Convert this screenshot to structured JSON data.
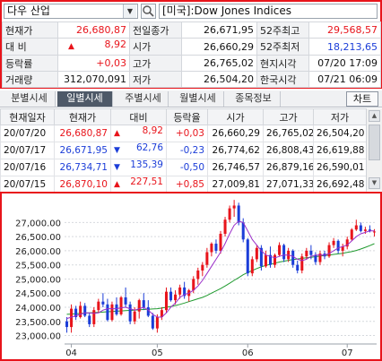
{
  "search": {
    "value": "다우 산업"
  },
  "market": {
    "value": "[미국]:Dow Jones Indices"
  },
  "quote": {
    "rows": [
      [
        {
          "label": "현재가",
          "value": "26,680,87",
          "color": "red",
          "arrow": ""
        },
        {
          "label": "전일종가",
          "value": "26,671,95",
          "color": "",
          "arrow": ""
        },
        {
          "label": "52주최고",
          "value": "29,568,57",
          "color": "red",
          "arrow": ""
        }
      ],
      [
        {
          "label": "대  비",
          "value": "8,92",
          "color": "red",
          "arrow": "▲"
        },
        {
          "label": "시가",
          "value": "26,660,29",
          "color": "",
          "arrow": ""
        },
        {
          "label": "52주최저",
          "value": "18,213,65",
          "color": "blue",
          "arrow": ""
        }
      ],
      [
        {
          "label": "등락률",
          "value": "+0,03",
          "color": "red",
          "arrow": ""
        },
        {
          "label": "고가",
          "value": "26,765,02",
          "color": "",
          "arrow": ""
        },
        {
          "label": "현지시각",
          "value": "07/20 17:09",
          "color": "",
          "arrow": ""
        }
      ],
      [
        {
          "label": "거래량",
          "value": "312,070,091",
          "color": "",
          "arrow": ""
        },
        {
          "label": "저가",
          "value": "26,504,20",
          "color": "",
          "arrow": ""
        },
        {
          "label": "한국시각",
          "value": "07/21 06:09",
          "color": "",
          "arrow": ""
        }
      ]
    ]
  },
  "tabs": [
    "분별시세",
    "일별시세",
    "주별시세",
    "월별시세",
    "종목정보"
  ],
  "active_tab": 1,
  "chart_button": "차트",
  "daily": {
    "headers": [
      "현재일자",
      "현재가",
      "대비",
      "등락율",
      "시가",
      "고가",
      "저가"
    ],
    "rows": [
      {
        "date": "20/07/20",
        "close": "26,680,87",
        "arrow": "▲",
        "change": "8,92",
        "rate": "+0,03",
        "open": "26,660,29",
        "high": "26,765,02",
        "low": "26,504,20",
        "color": "red"
      },
      {
        "date": "20/07/17",
        "close": "26,671,95",
        "arrow": "▼",
        "change": "62,76",
        "rate": "-0,23",
        "open": "26,774,62",
        "high": "26,808,43",
        "low": "26,619,88",
        "color": "blue"
      },
      {
        "date": "20/07/16",
        "close": "26,734,71",
        "arrow": "▼",
        "change": "135,39",
        "rate": "-0,50",
        "open": "26,746,57",
        "high": "26,879,16",
        "low": "26,590,01",
        "color": "blue"
      },
      {
        "date": "20/07/15",
        "close": "26,870,10",
        "arrow": "▲",
        "change": "227,51",
        "rate": "+0,85",
        "open": "27,009,81",
        "high": "27,071,33",
        "low": "26,692,48",
        "color": "red"
      }
    ]
  },
  "chart_data": {
    "type": "candlestick",
    "ylim": [
      22700,
      27900
    ],
    "yticks": [
      "27,000.00",
      "26,500.00",
      "26,000.00",
      "25,500.00",
      "25,000.00",
      "24,500.00",
      "24,000.00",
      "23,500.00",
      "23,000.00"
    ],
    "ytick_values": [
      27000,
      26500,
      26000,
      25500,
      25000,
      24500,
      24000,
      23500,
      23000
    ],
    "xticks": [
      {
        "label": "04",
        "index": 1
      },
      {
        "label": "05",
        "index": 20
      },
      {
        "label": "06",
        "index": 40
      },
      {
        "label": "07",
        "index": 62
      }
    ],
    "up_color": "#e8141b",
    "down_color": "#1b3dd8",
    "ma_short_color": "#9b2fc9",
    "ma_long_color": "#1f9a2e",
    "candles": [
      [
        23500,
        23650,
        23100,
        23300
      ],
      [
        23300,
        24100,
        23100,
        23950
      ],
      [
        23950,
        24050,
        23550,
        23650
      ],
      [
        23650,
        24200,
        23600,
        24050
      ],
      [
        24050,
        24150,
        23650,
        23700
      ],
      [
        23700,
        23800,
        23300,
        23400
      ],
      [
        23400,
        24000,
        23300,
        23900
      ],
      [
        23900,
        24300,
        23800,
        24200
      ],
      [
        24200,
        24500,
        24000,
        24100
      ],
      [
        24100,
        24300,
        23500,
        23550
      ],
      [
        23550,
        24200,
        23500,
        24100
      ],
      [
        24100,
        24350,
        23700,
        23750
      ],
      [
        23750,
        24400,
        23700,
        24350
      ],
      [
        24350,
        24700,
        24000,
        24100
      ],
      [
        24100,
        24200,
        23400,
        23500
      ],
      [
        23500,
        24000,
        23400,
        23850
      ],
      [
        23850,
        24300,
        23600,
        24250
      ],
      [
        24250,
        24500,
        23900,
        24000
      ],
      [
        24000,
        24250,
        23650,
        23700
      ],
      [
        23700,
        23800,
        23200,
        23250
      ],
      [
        23250,
        23750,
        23100,
        23650
      ],
      [
        23650,
        24000,
        23550,
        23900
      ],
      [
        23900,
        24700,
        23800,
        24550
      ],
      [
        24550,
        24700,
        24200,
        24250
      ],
      [
        24250,
        24600,
        24100,
        24450
      ],
      [
        24450,
        24800,
        24300,
        24700
      ],
      [
        24700,
        24900,
        24300,
        24400
      ],
      [
        24400,
        24650,
        24200,
        24600
      ],
      [
        24600,
        25100,
        24500,
        25000
      ],
      [
        25000,
        25400,
        24800,
        25300
      ],
      [
        25300,
        25600,
        25100,
        25500
      ],
      [
        25500,
        26100,
        25400,
        25950
      ],
      [
        25950,
        26300,
        25800,
        26250
      ],
      [
        26250,
        26400,
        25900,
        26000
      ],
      [
        26000,
        26700,
        25900,
        26600
      ],
      [
        26600,
        27200,
        26500,
        27100
      ],
      [
        27100,
        27600,
        27000,
        27500
      ],
      [
        27500,
        27800,
        27200,
        27600
      ],
      [
        27600,
        27700,
        26900,
        27000
      ],
      [
        27000,
        27150,
        26300,
        26400
      ],
      [
        26400,
        26450,
        25100,
        25200
      ],
      [
        25200,
        25800,
        25100,
        25700
      ],
      [
        25700,
        26200,
        25600,
        26100
      ],
      [
        26100,
        26200,
        25300,
        25450
      ],
      [
        25450,
        26000,
        25400,
        25850
      ],
      [
        25850,
        26150,
        25400,
        25500
      ],
      [
        25500,
        25900,
        25400,
        25850
      ],
      [
        25850,
        26300,
        25800,
        26200
      ],
      [
        26200,
        26250,
        25600,
        25700
      ],
      [
        25700,
        26100,
        25600,
        26000
      ],
      [
        26000,
        26050,
        25400,
        25500
      ],
      [
        25500,
        25650,
        25200,
        25300
      ],
      [
        25300,
        25900,
        25200,
        25800
      ],
      [
        25800,
        26100,
        25700,
        26000
      ],
      [
        26000,
        26200,
        25700,
        25850
      ],
      [
        25850,
        25950,
        25500,
        25600
      ],
      [
        25600,
        26000,
        25500,
        25900
      ],
      [
        25900,
        26000,
        25700,
        25800
      ],
      [
        25800,
        26300,
        25750,
        26200
      ],
      [
        26200,
        26450,
        26100,
        26350
      ],
      [
        26350,
        26400,
        25900,
        26000
      ],
      [
        26000,
        26250,
        25800,
        26150
      ],
      [
        26150,
        26500,
        26050,
        26400
      ],
      [
        26400,
        26800,
        26350,
        26750
      ],
      [
        26750,
        27100,
        26700,
        26900
      ],
      [
        26900,
        27000,
        26650,
        26700
      ],
      [
        26700,
        26850,
        26600,
        26750
      ],
      [
        26750,
        26900,
        26650,
        26700
      ],
      [
        26660,
        26765,
        26504,
        26681
      ]
    ],
    "ma_short": [
      23600,
      23650,
      23700,
      23750,
      23800,
      23800,
      23780,
      23800,
      23900,
      23950,
      23950,
      23950,
      23980,
      24000,
      23950,
      23900,
      23950,
      24000,
      23900,
      23750,
      23650,
      23650,
      23800,
      24000,
      24150,
      24350,
      24450,
      24500,
      24600,
      24750,
      24950,
      25200,
      25450,
      25700,
      25950,
      26250,
      26600,
      26900,
      27050,
      27000,
      26700,
      26400,
      26200,
      26000,
      25850,
      25800,
      25750,
      25800,
      25850,
      25850,
      25800,
      25700,
      25650,
      25700,
      25800,
      25850,
      25850,
      25850,
      25900,
      26000,
      26100,
      26150,
      26200,
      26350,
      26500,
      26600,
      26650,
      26700,
      26700
    ],
    "ma_long": [
      23750,
      23760,
      23770,
      23780,
      23790,
      23800,
      23810,
      23820,
      23830,
      23840,
      23850,
      23860,
      23870,
      23880,
      23890,
      23900,
      23910,
      23920,
      23930,
      23940,
      23950,
      23970,
      24000,
      24030,
      24060,
      24100,
      24150,
      24200,
      24250,
      24300,
      24350,
      24420,
      24500,
      24580,
      24660,
      24750,
      24850,
      24950,
      25050,
      25150,
      25230,
      25300,
      25370,
      25430,
      25480,
      25520,
      25560,
      25600,
      25630,
      25660,
      25690,
      25710,
      25730,
      25750,
      25770,
      25790,
      25810,
      25830,
      25850,
      25870,
      25890,
      25910,
      25940,
      25970,
      26010,
      26060,
      26120,
      26180,
      26250
    ]
  }
}
